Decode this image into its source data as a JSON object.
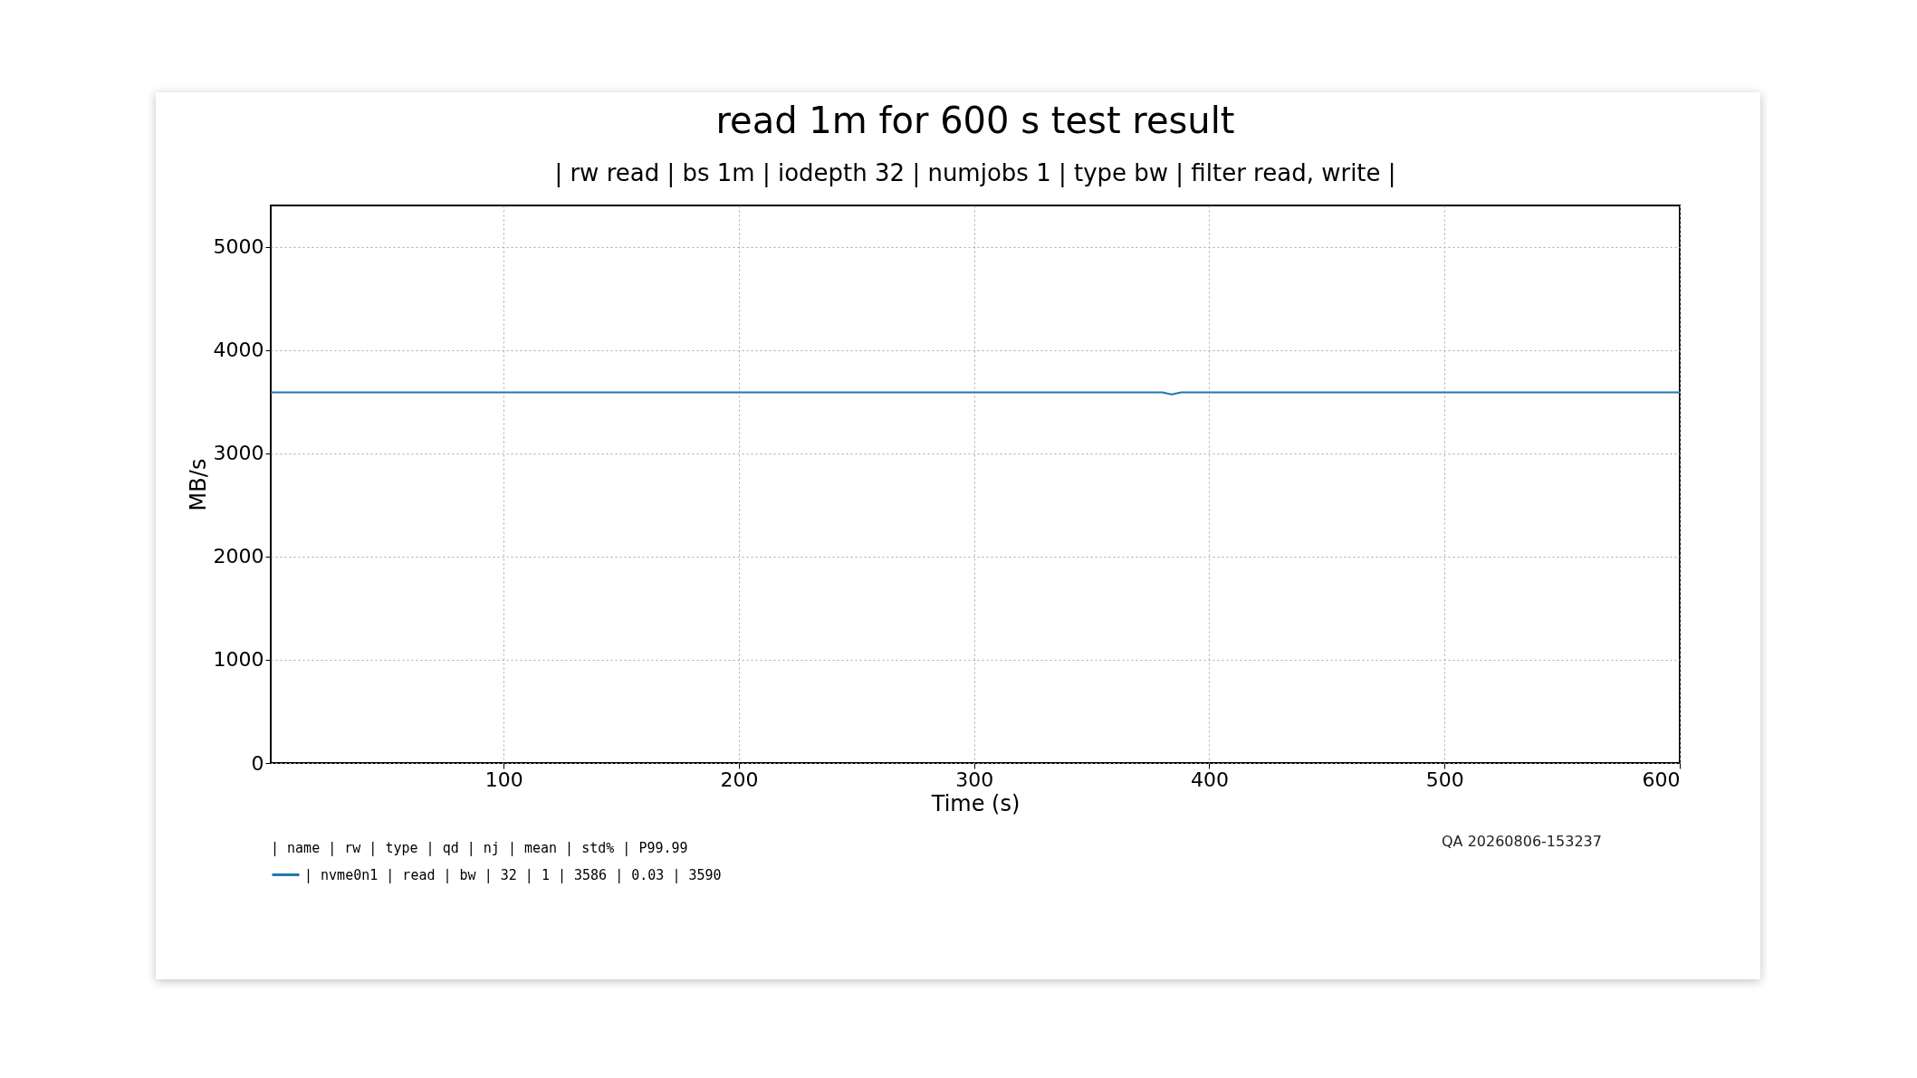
{
  "chart_data": {
    "type": "line",
    "title": "read 1m for 600 s test result",
    "subtitle": "| rw read | bs 1m | iodepth 32 | numjobs 1 | type bw | filter read, write |",
    "xlabel": "Time (s)",
    "ylabel": "MB/s",
    "legend_title": "| name | rw | type | qd | nj | mean | std% | P99.99",
    "legend": "bottom",
    "grid": true,
    "xlim": [
      1,
      600
    ],
    "xticks": [
      100,
      200,
      300,
      400,
      500,
      600
    ],
    "ylim": [
      0,
      5400
    ],
    "yticks": [
      0,
      1000,
      2000,
      3000,
      4000,
      5000
    ],
    "annotations": [
      "QA 20260806-153237"
    ],
    "series": [
      {
        "name": "| nvme0n1 | read | bw | 32 | 1 | 3586 | 0.03 | 3590",
        "color": "#1f77b4",
        "x": [
          1,
          50,
          100,
          150,
          200,
          250,
          300,
          350,
          380,
          384,
          388,
          400,
          450,
          500,
          550,
          600
        ],
        "values": [
          3590,
          3590,
          3590,
          3590,
          3590,
          3590,
          3590,
          3590,
          3590,
          3570,
          3590,
          3590,
          3590,
          3590,
          3590,
          3590
        ]
      }
    ]
  }
}
